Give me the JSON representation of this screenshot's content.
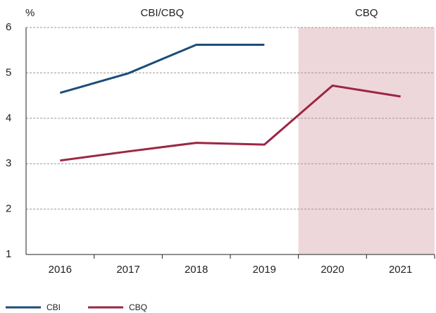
{
  "chart_data": {
    "type": "line",
    "y_label": "%",
    "categories": [
      "2016",
      "2017",
      "2018",
      "2019",
      "2020",
      "2021"
    ],
    "series": [
      {
        "name": "CBI",
        "color": "#1c4d7a",
        "values": [
          4.56,
          4.99,
          5.62,
          5.62,
          null,
          null
        ]
      },
      {
        "name": "CBQ",
        "color": "#9b2743",
        "values": [
          3.07,
          3.27,
          3.46,
          3.42,
          4.72,
          4.48
        ]
      }
    ],
    "regions": [
      {
        "label": "CBI/CBQ",
        "from": "2016",
        "to": "2019"
      },
      {
        "label": "CBQ",
        "from": "2020",
        "to": "2021",
        "color": "#eed7db"
      }
    ],
    "ylim": [
      1,
      6
    ],
    "yticks": [
      1,
      2,
      3,
      4,
      5,
      6
    ],
    "grid": true,
    "legend": "bottom-left"
  }
}
